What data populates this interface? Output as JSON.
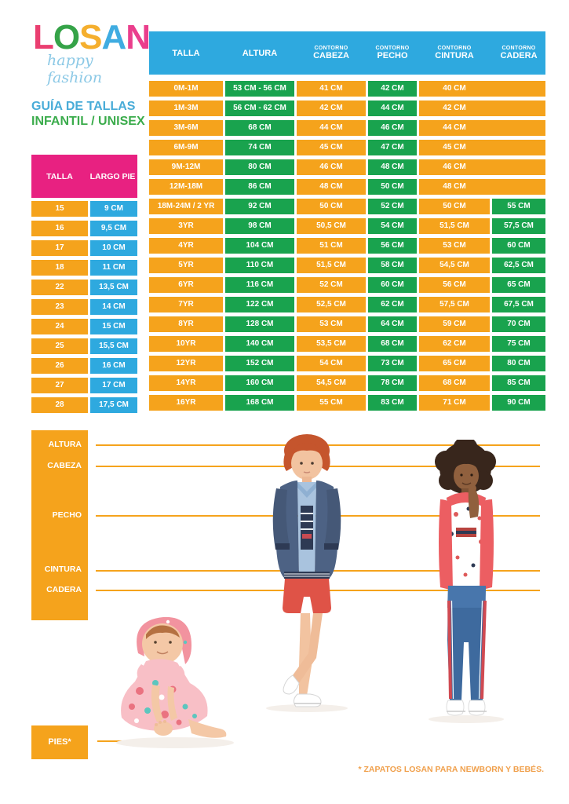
{
  "logo": {
    "letters": [
      {
        "char": "L",
        "color": "#EA3E70"
      },
      {
        "char": "O",
        "color": "#35A348"
      },
      {
        "char": "S",
        "color": "#F5AF2E"
      },
      {
        "char": "A",
        "color": "#3FACE1"
      },
      {
        "char": "N",
        "color": "#EA3E8C"
      }
    ],
    "tagline": "happy fashion"
  },
  "subtitle": {
    "line1": "GUÍA DE TALLAS",
    "line2": "INFANTIL / UNISEX"
  },
  "foot_table": {
    "headers": [
      "TALLA",
      "LARGO PIE"
    ],
    "rows": [
      {
        "talla": "15",
        "largo_pie": "9 CM"
      },
      {
        "talla": "16",
        "largo_pie": "9,5 CM"
      },
      {
        "talla": "17",
        "largo_pie": "10 CM"
      },
      {
        "talla": "18",
        "largo_pie": "11 CM"
      },
      {
        "talla": "22",
        "largo_pie": "13,5 CM"
      },
      {
        "talla": "23",
        "largo_pie": "14 CM"
      },
      {
        "talla": "24",
        "largo_pie": "15 CM"
      },
      {
        "talla": "25",
        "largo_pie": "15,5 CM"
      },
      {
        "talla": "26",
        "largo_pie": "16 CM"
      },
      {
        "talla": "27",
        "largo_pie": "17 CM"
      },
      {
        "talla": "28",
        "largo_pie": "17,5 CM"
      }
    ]
  },
  "main_table": {
    "headers": [
      {
        "line1": "",
        "line2": "TALLA"
      },
      {
        "line1": "",
        "line2": "ALTURA"
      },
      {
        "line1": "CONTORNO",
        "line2": "CABEZA"
      },
      {
        "line1": "CONTORNO",
        "line2": "PECHO"
      },
      {
        "line1": "CONTORNO",
        "line2": "CINTURA"
      },
      {
        "line1": "CONTORNO",
        "line2": "CADERA"
      }
    ],
    "rows": [
      {
        "talla": "0M-1M",
        "altura": "53 CM - 56 CM",
        "cabeza": "41 CM",
        "pecho": "42 CM",
        "cintura": "40 CM",
        "cadera": null
      },
      {
        "talla": "1M-3M",
        "altura": "56 CM - 62 CM",
        "cabeza": "42 CM",
        "pecho": "44 CM",
        "cintura": "42 CM",
        "cadera": null
      },
      {
        "talla": "3M-6M",
        "altura": "68 CM",
        "cabeza": "44 CM",
        "pecho": "46 CM",
        "cintura": "44 CM",
        "cadera": null
      },
      {
        "talla": "6M-9M",
        "altura": "74 CM",
        "cabeza": "45 CM",
        "pecho": "47 CM",
        "cintura": "45 CM",
        "cadera": null
      },
      {
        "talla": "9M-12M",
        "altura": "80 CM",
        "cabeza": "46 CM",
        "pecho": "48 CM",
        "cintura": "46 CM",
        "cadera": null
      },
      {
        "talla": "12M-18M",
        "altura": "86 CM",
        "cabeza": "48 CM",
        "pecho": "50 CM",
        "cintura": "48 CM",
        "cadera": null
      },
      {
        "talla": "18M-24M / 2 YR",
        "altura": "92 CM",
        "cabeza": "50 CM",
        "pecho": "52 CM",
        "cintura": "50 CM",
        "cadera": "55 CM"
      },
      {
        "talla": "3YR",
        "altura": "98 CM",
        "cabeza": "50,5 CM",
        "pecho": "54 CM",
        "cintura": "51,5 CM",
        "cadera": "57,5 CM"
      },
      {
        "talla": "4YR",
        "altura": "104 CM",
        "cabeza": "51 CM",
        "pecho": "56 CM",
        "cintura": "53 CM",
        "cadera": "60 CM"
      },
      {
        "talla": "5YR",
        "altura": "110 CM",
        "cabeza": "51,5 CM",
        "pecho": "58 CM",
        "cintura": "54,5 CM",
        "cadera": "62,5 CM"
      },
      {
        "talla": "6YR",
        "altura": "116 CM",
        "cabeza": "52 CM",
        "pecho": "60 CM",
        "cintura": "56 CM",
        "cadera": "65 CM"
      },
      {
        "talla": "7YR",
        "altura": "122 CM",
        "cabeza": "52,5 CM",
        "pecho": "62 CM",
        "cintura": "57,5 CM",
        "cadera": "67,5 CM"
      },
      {
        "talla": "8YR",
        "altura": "128 CM",
        "cabeza": "53 CM",
        "pecho": "64 CM",
        "cintura": "59 CM",
        "cadera": "70 CM"
      },
      {
        "talla": "10YR",
        "altura": "140 CM",
        "cabeza": "53,5 CM",
        "pecho": "68 CM",
        "cintura": "62 CM",
        "cadera": "75 CM"
      },
      {
        "talla": "12YR",
        "altura": "152 CM",
        "cabeza": "54 CM",
        "pecho": "73 CM",
        "cintura": "65 CM",
        "cadera": "80 CM"
      },
      {
        "talla": "14YR",
        "altura": "160 CM",
        "cabeza": "54,5 CM",
        "pecho": "78 CM",
        "cintura": "68 CM",
        "cadera": "85 CM"
      },
      {
        "talla": "16YR",
        "altura": "168 CM",
        "cabeza": "55 CM",
        "pecho": "83 CM",
        "cintura": "71 CM",
        "cadera": "90 CM"
      }
    ]
  },
  "measure_guide": {
    "labels": [
      "ALTURA",
      "CABEZA",
      "PECHO",
      "CINTURA",
      "CADERA"
    ],
    "pies_label": "PIES*"
  },
  "footnote": "* ZAPATOS LOSAN PARA NEWBORN Y BEBÉS.",
  "colors": {
    "orange": "#F5A31C",
    "green": "#19A34E",
    "blue": "#2EA9DF",
    "pink": "#E82181"
  }
}
